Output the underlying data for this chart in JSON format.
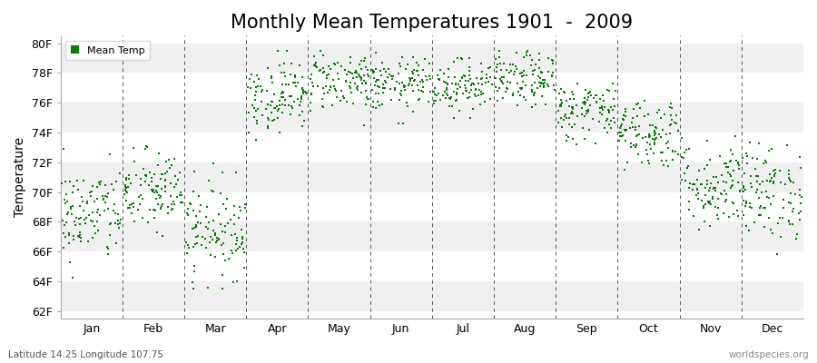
{
  "title": "Monthly Mean Temperatures 1901  -  2009",
  "ylabel": "Temperature",
  "xlabel_months": [
    "Jan",
    "Feb",
    "Mar",
    "Apr",
    "May",
    "Jun",
    "Jul",
    "Aug",
    "Sep",
    "Oct",
    "Nov",
    "Dec"
  ],
  "ytick_labels": [
    "62F",
    "64F",
    "66F",
    "68F",
    "70F",
    "72F",
    "74F",
    "76F",
    "78F",
    "80F"
  ],
  "ytick_values": [
    62,
    64,
    66,
    68,
    70,
    72,
    74,
    76,
    78,
    80
  ],
  "ylim": [
    61.5,
    80.5
  ],
  "dot_color": "#008000",
  "dot_size": 3,
  "background_color": "#ffffff",
  "band_colors": [
    "#f0f0f0",
    "#ffffff"
  ],
  "subtitle": "Latitude 14.25 Longitude 107.75",
  "watermark": "worldspecies.org",
  "legend_label": "Mean Temp",
  "title_fontsize": 15,
  "years": 109,
  "month_means": [
    68.5,
    70.0,
    67.5,
    76.5,
    77.5,
    77.2,
    77.2,
    77.5,
    75.5,
    74.0,
    70.5,
    70.0
  ],
  "month_stds": [
    1.6,
    1.4,
    1.6,
    1.2,
    1.0,
    0.9,
    0.9,
    0.9,
    1.0,
    1.2,
    1.5,
    1.6
  ],
  "month_mins": [
    62.0,
    66.5,
    63.5,
    73.5,
    74.5,
    74.5,
    75.0,
    75.0,
    73.0,
    71.5,
    67.5,
    65.0
  ],
  "month_maxs": [
    73.5,
    73.5,
    73.0,
    79.5,
    79.5,
    79.5,
    79.0,
    79.5,
    77.5,
    76.5,
    76.0,
    73.5
  ]
}
